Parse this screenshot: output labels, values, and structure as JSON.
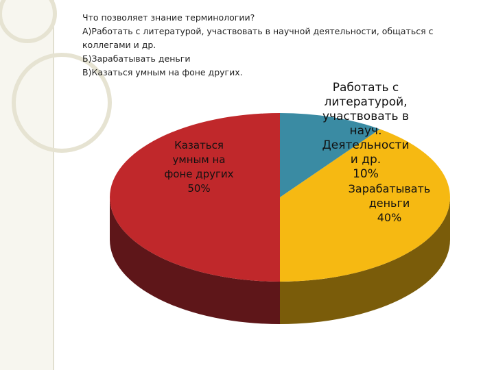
{
  "chart_data": {
    "type": "pie3d",
    "title": "Что позволяет знание терминологии?",
    "annotations": [
      "А)Работать с литературой, участвовать в научной деятельности, общаться с коллегами и др.",
      "Б)Зарабатывать деньги",
      "В)Казаться умным на фоне других."
    ],
    "categories": [
      "Работать с литературой, участвовать в науч. Деятельности и др.",
      "Зарабатывать деньги",
      "Казаться умным на фоне других"
    ],
    "values": [
      10,
      40,
      50
    ],
    "value_labels": [
      "10%",
      "40%",
      "50%"
    ],
    "colors": [
      "#3a8ba3",
      "#f6b912",
      "#c0282b"
    ]
  }
}
